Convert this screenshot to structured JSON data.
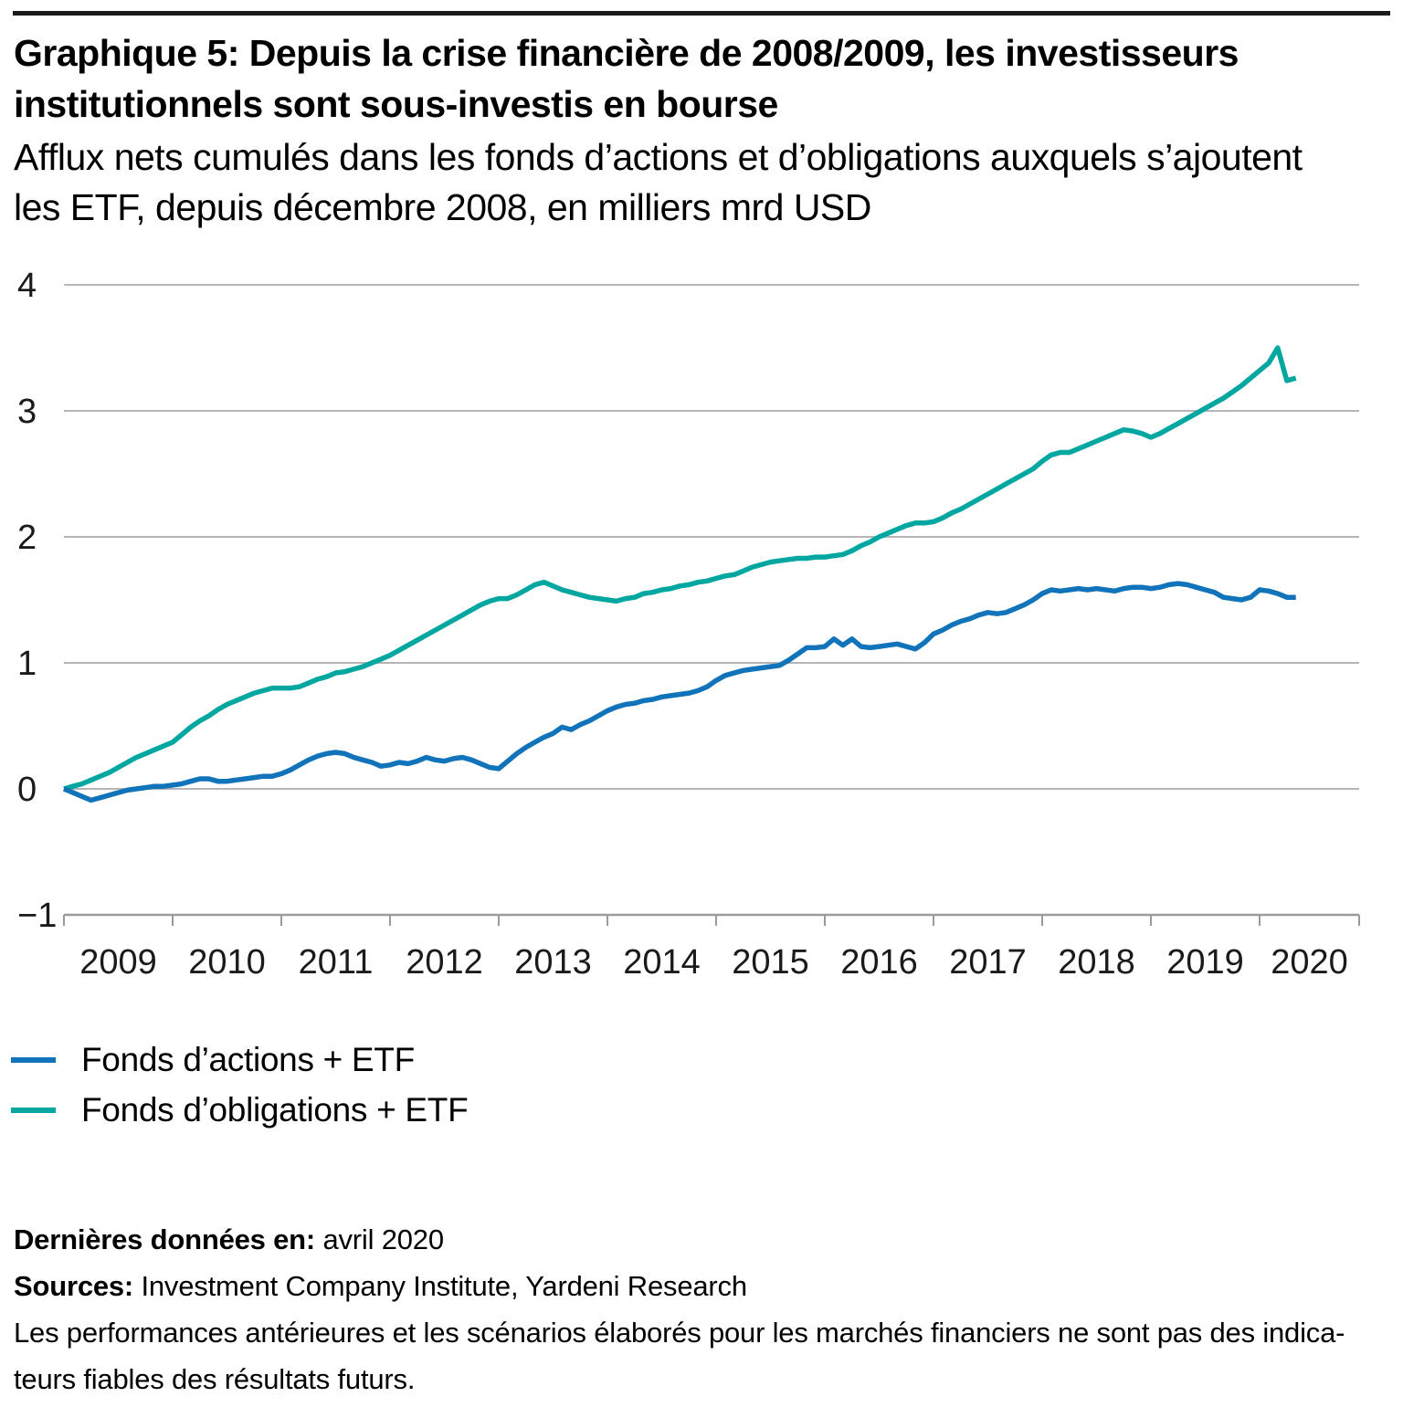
{
  "header": {
    "title": "Graphique 5: Depuis la crise financière de 2008/2009, les investisseurs institutionnels sont sous-investis en bourse",
    "subtitle": "Afflux nets cumulés dans les fonds d’actions et d’obligations auxquels s’ajoutent les ETF, depuis décembre 2008, en milliers mrd USD"
  },
  "chart_data": {
    "type": "line",
    "title": "Afflux nets cumulés dans les fonds d’actions et d’obligations + ETF, depuis décembre 2008, en milliers mrd USD",
    "x_start": "2008-12",
    "x_end": "2020-04",
    "x_step": "month",
    "x_tick_labels": [
      "2009",
      "2010",
      "2011",
      "2012",
      "2013",
      "2014",
      "2015",
      "2016",
      "2017",
      "2018",
      "2019",
      "2020"
    ],
    "y_tick_labels": [
      "4",
      "3",
      "2",
      "1",
      "0",
      "−1"
    ],
    "ylim": [
      -1,
      4
    ],
    "grid": "horizontal",
    "legend_position": "below",
    "colors": {
      "grid": "#b5b5b5",
      "axis": "#9b9b9b",
      "label": "#1a1a1a"
    },
    "series": [
      {
        "name": "Fonds d’actions + ETF",
        "color": "#1173b9",
        "values": [
          0.0,
          -0.03,
          -0.06,
          -0.09,
          -0.07,
          -0.05,
          -0.03,
          -0.01,
          0.0,
          0.01,
          0.02,
          0.02,
          0.03,
          0.04,
          0.06,
          0.08,
          0.08,
          0.06,
          0.06,
          0.07,
          0.08,
          0.09,
          0.1,
          0.1,
          0.12,
          0.15,
          0.19,
          0.23,
          0.26,
          0.28,
          0.29,
          0.28,
          0.25,
          0.23,
          0.21,
          0.18,
          0.19,
          0.21,
          0.2,
          0.22,
          0.25,
          0.23,
          0.22,
          0.24,
          0.25,
          0.23,
          0.2,
          0.17,
          0.16,
          0.22,
          0.28,
          0.33,
          0.37,
          0.41,
          0.44,
          0.49,
          0.47,
          0.51,
          0.54,
          0.58,
          0.62,
          0.65,
          0.67,
          0.68,
          0.7,
          0.71,
          0.73,
          0.74,
          0.75,
          0.76,
          0.78,
          0.81,
          0.86,
          0.9,
          0.92,
          0.94,
          0.95,
          0.96,
          0.97,
          0.98,
          1.02,
          1.07,
          1.12,
          1.12,
          1.13,
          1.19,
          1.14,
          1.19,
          1.13,
          1.12,
          1.13,
          1.14,
          1.15,
          1.13,
          1.11,
          1.16,
          1.23,
          1.26,
          1.3,
          1.33,
          1.35,
          1.38,
          1.4,
          1.39,
          1.4,
          1.43,
          1.46,
          1.5,
          1.55,
          1.58,
          1.57,
          1.58,
          1.59,
          1.58,
          1.59,
          1.58,
          1.57,
          1.59,
          1.6,
          1.6,
          1.59,
          1.6,
          1.62,
          1.63,
          1.62,
          1.6,
          1.58,
          1.56,
          1.52,
          1.51,
          1.5,
          1.52,
          1.58,
          1.57,
          1.55,
          1.52,
          1.52
        ]
      },
      {
        "name": "Fonds d’obligations + ETF",
        "color": "#00a7a0",
        "values": [
          0.0,
          0.02,
          0.04,
          0.07,
          0.1,
          0.13,
          0.17,
          0.21,
          0.25,
          0.28,
          0.31,
          0.34,
          0.37,
          0.43,
          0.49,
          0.54,
          0.58,
          0.63,
          0.67,
          0.7,
          0.73,
          0.76,
          0.78,
          0.8,
          0.8,
          0.8,
          0.81,
          0.84,
          0.87,
          0.89,
          0.92,
          0.93,
          0.95,
          0.97,
          1.0,
          1.03,
          1.06,
          1.1,
          1.14,
          1.18,
          1.22,
          1.26,
          1.3,
          1.34,
          1.38,
          1.42,
          1.46,
          1.49,
          1.51,
          1.51,
          1.54,
          1.58,
          1.62,
          1.64,
          1.61,
          1.58,
          1.56,
          1.54,
          1.52,
          1.51,
          1.5,
          1.49,
          1.51,
          1.52,
          1.55,
          1.56,
          1.58,
          1.59,
          1.61,
          1.62,
          1.64,
          1.65,
          1.67,
          1.69,
          1.7,
          1.73,
          1.76,
          1.78,
          1.8,
          1.81,
          1.82,
          1.83,
          1.83,
          1.84,
          1.84,
          1.85,
          1.86,
          1.89,
          1.93,
          1.96,
          2.0,
          2.03,
          2.06,
          2.09,
          2.11,
          2.11,
          2.12,
          2.15,
          2.19,
          2.22,
          2.26,
          2.3,
          2.34,
          2.38,
          2.42,
          2.46,
          2.5,
          2.54,
          2.6,
          2.65,
          2.67,
          2.67,
          2.7,
          2.73,
          2.76,
          2.79,
          2.82,
          2.85,
          2.84,
          2.82,
          2.79,
          2.82,
          2.86,
          2.9,
          2.94,
          2.98,
          3.02,
          3.06,
          3.1,
          3.15,
          3.2,
          3.26,
          3.32,
          3.38,
          3.5,
          3.24,
          3.26
        ]
      }
    ]
  },
  "legend": {
    "items": [
      {
        "label": "Fonds d’actions + ETF",
        "color": "#1173b9"
      },
      {
        "label": "Fonds d’obligations + ETF",
        "color": "#00a7a0"
      }
    ]
  },
  "footer": {
    "last_data_label": "Dernières données en:",
    "last_data_value": " avril 2020",
    "sources_label": "Sources:",
    "sources_value": " Investment Company Institute, Yardeni Research",
    "disclaimer_line1": "Les performances antérieures et les scénarios élaborés pour les marchés financiers ne sont pas des indica-",
    "disclaimer_line2": "teurs fiables des résultats futurs."
  }
}
